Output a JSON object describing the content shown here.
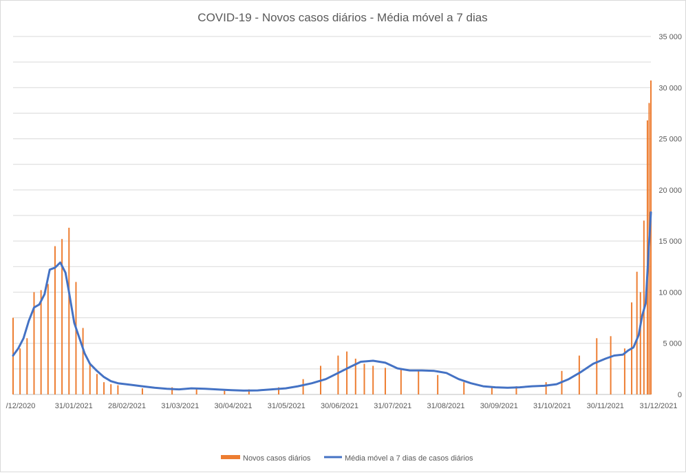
{
  "chart_data": {
    "type": "bar+line",
    "title": "COVID-19 - Novos casos diários - Média móvel a 7 dias",
    "xlabel": "",
    "ylabel": "",
    "ylim": [
      0,
      35000
    ],
    "y_ticks": [
      0,
      5000,
      10000,
      15000,
      20000,
      25000,
      30000,
      35000
    ],
    "y_tick_labels": [
      "0",
      "5 000",
      "10 000",
      "15 000",
      "20 000",
      "25 000",
      "30 000",
      "35 000"
    ],
    "x_range": [
      "2020-12-31",
      "2021-12-31"
    ],
    "x_tick_labels": [
      "/12/2020",
      "31/01/2021",
      "28/02/2021",
      "31/03/2021",
      "30/04/2021",
      "31/05/2021",
      "30/06/2021",
      "31/07/2021",
      "31/08/2021",
      "30/09/2021",
      "31/10/2021",
      "30/11/2021",
      "31/12/2021"
    ],
    "grid": true,
    "y_axis_side": "right",
    "legend_position": "bottom",
    "series": [
      {
        "name": "Novos casos diários",
        "type": "bar",
        "color": "#ED7D31",
        "x": [
          "2020-12-31",
          "2021-01-04",
          "2021-01-08",
          "2021-01-12",
          "2021-01-16",
          "2021-01-20",
          "2021-01-24",
          "2021-01-28",
          "2021-02-01",
          "2021-02-05",
          "2021-02-09",
          "2021-02-13",
          "2021-02-17",
          "2021-02-21",
          "2021-02-25",
          "2021-03-01",
          "2021-03-15",
          "2021-04-01",
          "2021-04-15",
          "2021-05-01",
          "2021-05-15",
          "2021-06-01",
          "2021-06-15",
          "2021-06-25",
          "2021-07-05",
          "2021-07-10",
          "2021-07-15",
          "2021-07-20",
          "2021-07-25",
          "2021-08-01",
          "2021-08-10",
          "2021-08-20",
          "2021-08-31",
          "2021-09-15",
          "2021-10-01",
          "2021-10-15",
          "2021-11-01",
          "2021-11-10",
          "2021-11-20",
          "2021-11-30",
          "2021-12-08",
          "2021-12-16",
          "2021-12-20",
          "2021-12-23",
          "2021-12-25",
          "2021-12-27",
          "2021-12-29",
          "2021-12-30",
          "2021-12-31"
        ],
        "values": [
          7500,
          4500,
          5500,
          10000,
          10200,
          10800,
          14500,
          15200,
          16300,
          11000,
          6500,
          3000,
          2000,
          1200,
          1000,
          900,
          600,
          700,
          500,
          350,
          500,
          700,
          1500,
          2800,
          3800,
          4200,
          3500,
          3000,
          2800,
          2600,
          2500,
          2400,
          1900,
          1200,
          700,
          800,
          1200,
          2300,
          3800,
          5500,
          5700,
          4500,
          9000,
          12000,
          10000,
          17000,
          26800,
          28500,
          30700
        ]
      },
      {
        "name": "Média móvel a 7 dias de casos diários",
        "type": "line",
        "color": "#4472C4",
        "x": [
          "2020-12-31",
          "2021-01-03",
          "2021-01-06",
          "2021-01-09",
          "2021-01-12",
          "2021-01-15",
          "2021-01-18",
          "2021-01-21",
          "2021-01-24",
          "2021-01-27",
          "2021-01-30",
          "2021-02-01",
          "2021-02-04",
          "2021-02-07",
          "2021-02-10",
          "2021-02-13",
          "2021-02-17",
          "2021-02-21",
          "2021-02-25",
          "2021-03-01",
          "2021-03-08",
          "2021-03-15",
          "2021-03-22",
          "2021-03-29",
          "2021-04-05",
          "2021-04-12",
          "2021-04-20",
          "2021-04-28",
          "2021-05-05",
          "2021-05-12",
          "2021-05-20",
          "2021-05-28",
          "2021-06-05",
          "2021-06-12",
          "2021-06-20",
          "2021-06-28",
          "2021-07-05",
          "2021-07-12",
          "2021-07-18",
          "2021-07-25",
          "2021-08-01",
          "2021-08-08",
          "2021-08-15",
          "2021-08-22",
          "2021-08-29",
          "2021-09-05",
          "2021-09-12",
          "2021-09-19",
          "2021-09-26",
          "2021-10-03",
          "2021-10-10",
          "2021-10-17",
          "2021-10-24",
          "2021-10-31",
          "2021-11-07",
          "2021-11-14",
          "2021-11-21",
          "2021-11-28",
          "2021-12-05",
          "2021-12-10",
          "2021-12-15",
          "2021-12-18",
          "2021-12-21",
          "2021-12-24",
          "2021-12-26",
          "2021-12-28",
          "2021-12-30",
          "2021-12-31"
        ],
        "values": [
          3800,
          4500,
          5500,
          7200,
          8500,
          8800,
          9800,
          12200,
          12400,
          12900,
          11900,
          10000,
          7000,
          5500,
          4000,
          3000,
          2300,
          1700,
          1300,
          1100,
          950,
          800,
          650,
          550,
          500,
          600,
          550,
          480,
          420,
          380,
          400,
          500,
          600,
          800,
          1100,
          1500,
          2100,
          2700,
          3200,
          3300,
          3100,
          2550,
          2350,
          2350,
          2300,
          2100,
          1500,
          1100,
          800,
          700,
          650,
          700,
          800,
          850,
          1000,
          1500,
          2200,
          3000,
          3500,
          3800,
          3900,
          4300,
          4600,
          5800,
          7700,
          8900,
          15000,
          17800
        ]
      }
    ]
  }
}
